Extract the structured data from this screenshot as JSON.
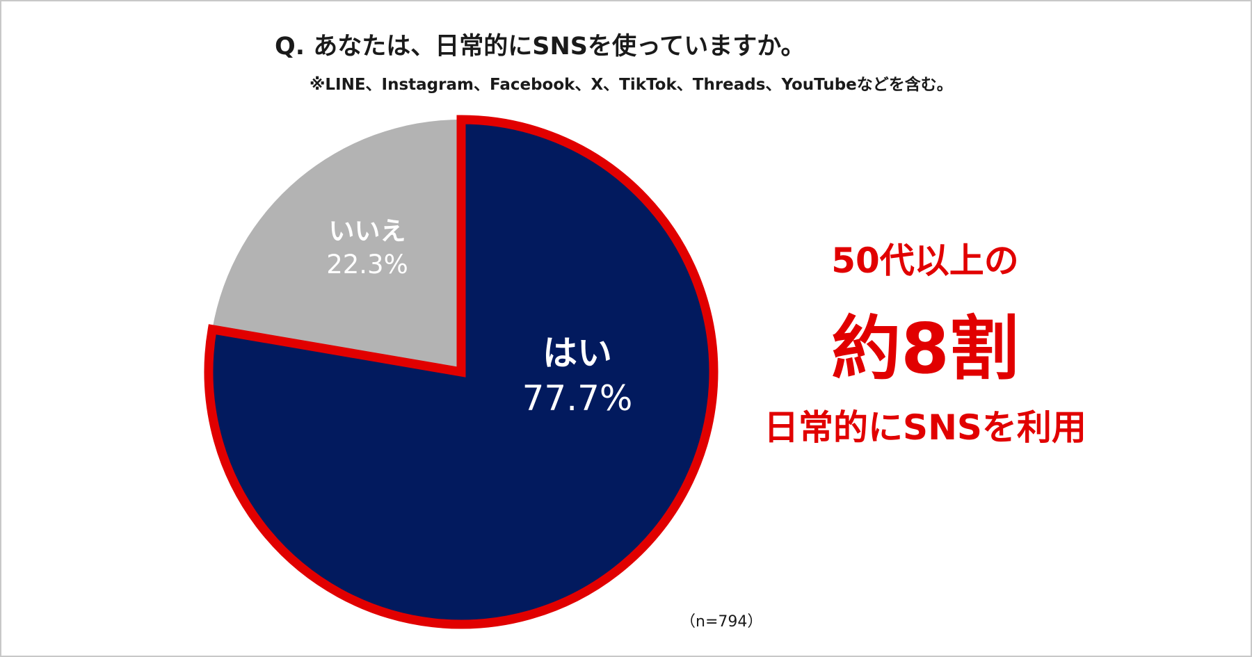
{
  "title": "Q. あなたは、日常的にSNSを使っていますか。",
  "subtitle": "※LINE、Instagram、Facebook、X、TikTok、Threads、YouTubeなどを含む。",
  "note": "（n=794）",
  "callout": {
    "line1": "50代以上の",
    "line2": "約8割",
    "line3": "日常的にSNSを利用"
  },
  "colors": {
    "yes": "#021a5e",
    "no": "#b3b3b3",
    "highlight": "#e10000"
  },
  "chart_data": {
    "type": "pie",
    "slices": [
      {
        "label": "はい",
        "value": 77.7,
        "display": "77.7%",
        "color": "#021a5e",
        "highlighted": true
      },
      {
        "label": "いいえ",
        "value": 22.3,
        "display": "22.3%",
        "color": "#b3b3b3",
        "highlighted": false
      }
    ],
    "start": "12 o'clock",
    "direction": "clockwise",
    "legend": "none"
  }
}
